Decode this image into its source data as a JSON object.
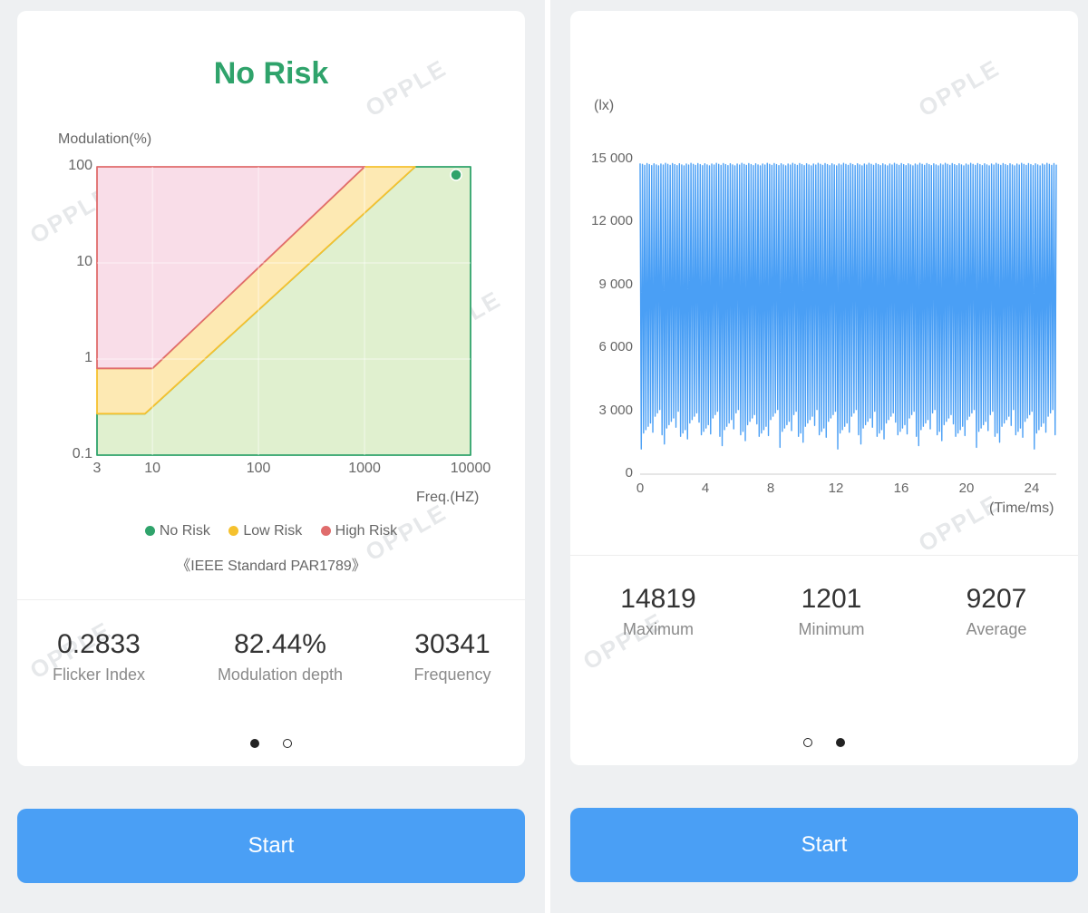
{
  "left_card": {
    "risk_title": "No Risk",
    "risk_color": "#2fa36b",
    "watermark": "OPPLE",
    "legend": [
      {
        "label": "No Risk",
        "color": "#2fa36b"
      },
      {
        "label": "Low Risk",
        "color": "#f5c12e"
      },
      {
        "label": "High Risk",
        "color": "#e06c6c"
      }
    ],
    "standard": "《IEEE Standard PAR1789》",
    "stats": [
      {
        "value": "0.2833",
        "label": "Flicker Index"
      },
      {
        "value": "82.44%",
        "label": "Modulation depth"
      },
      {
        "value": "30341",
        "label": "Frequency"
      }
    ],
    "pager_active": 0
  },
  "right_card": {
    "watermark": "OPPLE",
    "stats": [
      {
        "value": "14819",
        "label": "Maximum"
      },
      {
        "value": "1201",
        "label": "Minimum"
      },
      {
        "value": "9207",
        "label": "Average"
      }
    ],
    "pager_active": 1
  },
  "start_label": "Start",
  "chart_data": [
    {
      "type": "area",
      "ylabel": "Modulation(%)",
      "xlabel": "Freq.(HZ)",
      "x_scale": "log",
      "y_scale": "log",
      "xlim": [
        3,
        10000
      ],
      "ylim": [
        0.1,
        100
      ],
      "x_ticks": [
        "3",
        "10",
        "100",
        "1000",
        "10000"
      ],
      "y_ticks": [
        "100",
        "10",
        "1",
        "0.1"
      ],
      "regions": [
        {
          "name": "High Risk",
          "color": "#e06c6c",
          "fill": "#f9dde8",
          "points": [
            [
              3,
              100
            ],
            [
              1000,
              100
            ],
            [
              10,
              0.8
            ],
            [
              3,
              0.8
            ]
          ]
        },
        {
          "name": "Low Risk",
          "color": "#f5c12e",
          "fill": "#fde9b3",
          "points": [
            [
              1000,
              100
            ],
            [
              3000,
              100
            ],
            [
              8.5,
              0.27
            ],
            [
              3,
              0.27
            ],
            [
              3,
              0.8
            ],
            [
              10,
              0.8
            ]
          ]
        },
        {
          "name": "No Risk",
          "color": "#2fa36b",
          "fill": "#e0f0cf",
          "points": [
            [
              3000,
              100
            ],
            [
              10000,
              100
            ],
            [
              10000,
              0.1
            ],
            [
              3,
              0.1
            ],
            [
              3,
              0.27
            ],
            [
              8.5,
              0.27
            ]
          ]
        }
      ],
      "measurement": {
        "x": 10000,
        "y": 82.44
      }
    },
    {
      "type": "line",
      "ylabel": "(lx)",
      "xlabel": "(Time/ms)",
      "xlim": [
        0,
        25.5
      ],
      "ylim": [
        0,
        15000
      ],
      "x_ticks": [
        "0",
        "4",
        "8",
        "12",
        "16",
        "20",
        "24"
      ],
      "y_ticks": [
        "15 000",
        "12 000",
        "9 000",
        "6 000",
        "3 000",
        "0"
      ],
      "series": [
        {
          "color": "#4a9ff5",
          "max": 14819,
          "min": 1201,
          "cycles": 180
        }
      ]
    }
  ]
}
